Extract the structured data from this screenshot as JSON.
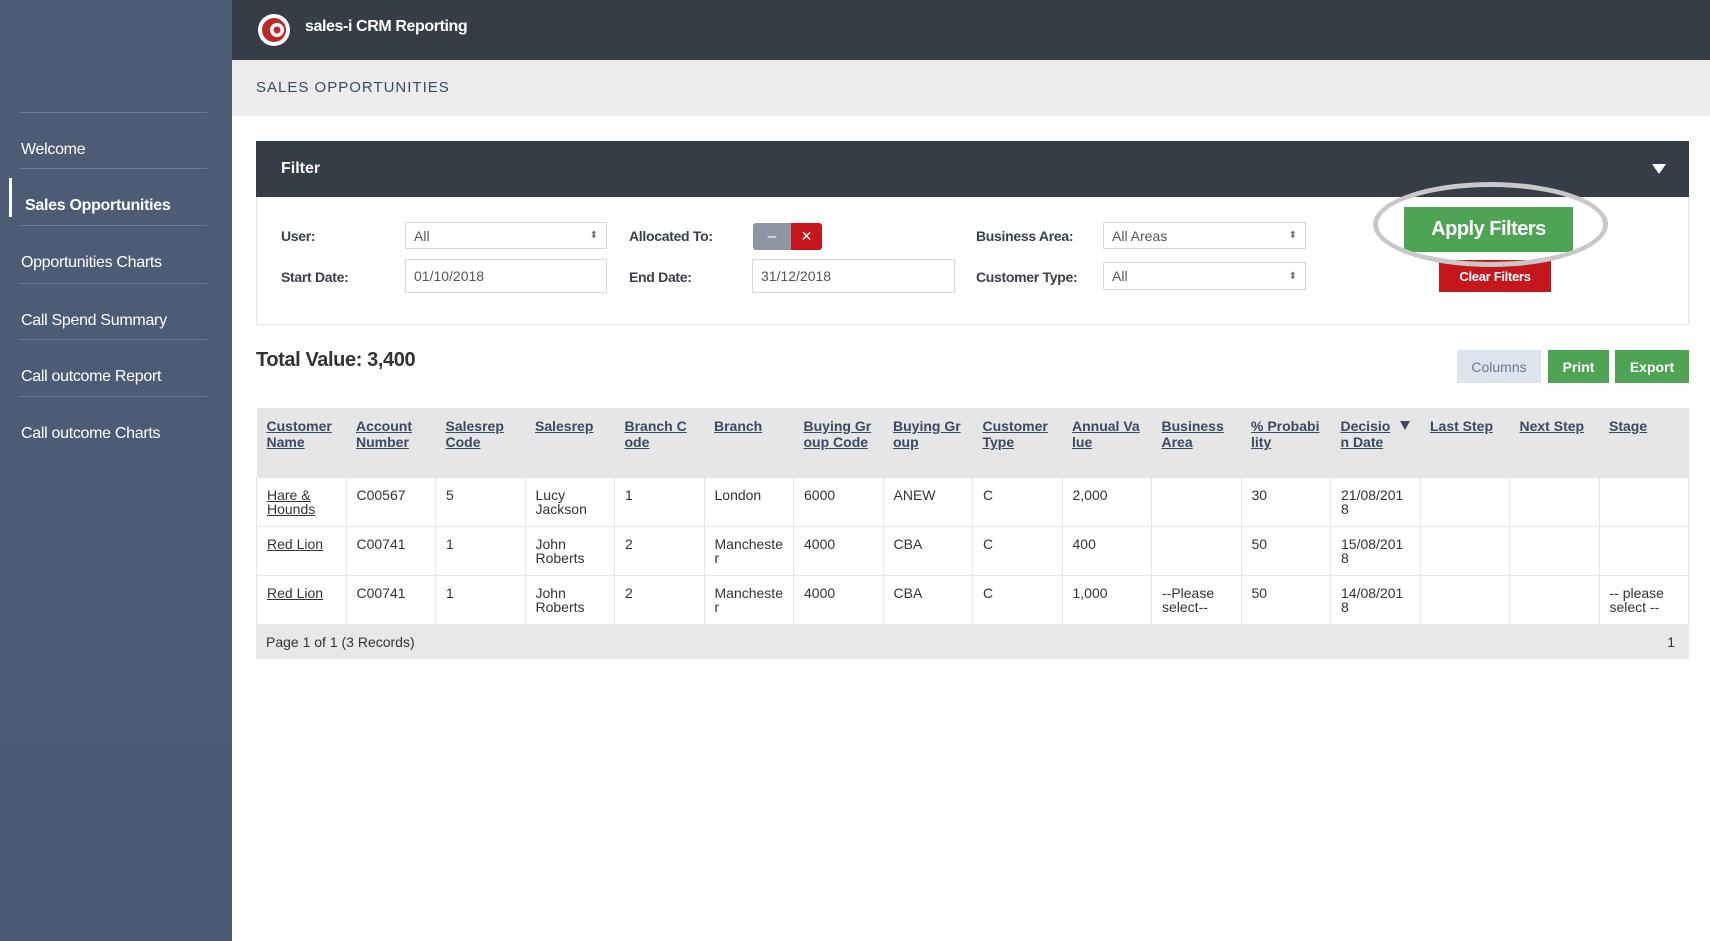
{
  "header": {
    "title": "sales-i CRM Reporting"
  },
  "sidebar": {
    "items": [
      "Welcome",
      "Sales Opportunities",
      "Opportunities Charts",
      "Call Spend Summary",
      "Call outcome Report",
      "Call outcome Charts"
    ]
  },
  "page": {
    "title": "SALES OPPORTUNITIES"
  },
  "filter": {
    "title": "Filter",
    "user": {
      "label": "User:",
      "value": "All"
    },
    "allocated": {
      "label": "Allocated To:"
    },
    "business_area": {
      "label": "Business Area:",
      "value": "All Areas"
    },
    "start_date": {
      "label": "Start Date:",
      "value": "01/10/2018"
    },
    "end_date": {
      "label": "End Date:",
      "value": "31/12/2018"
    },
    "customer_type": {
      "label": "Customer Type:",
      "value": "All"
    },
    "apply": "Apply Filters",
    "clear": "Clear Filters"
  },
  "summary": {
    "total": "Total Value: 3,400"
  },
  "toolbar": {
    "columns": "Columns",
    "print": "Print",
    "export": "Export"
  },
  "table": {
    "headers": [
      "Customer Name",
      "Account Number",
      "Salesrep Code",
      "Salesrep",
      "Branch Code",
      "Branch",
      "Buying Group Code",
      "Buying Group",
      "Customer Type",
      "Annual Value",
      "Business Area",
      "% Probability",
      "Decision Date",
      "Last Step",
      "Next Step",
      "Stage"
    ],
    "rows": [
      [
        "Hare & Hounds",
        "C00567",
        "5",
        "Lucy Jackson",
        "1",
        "London",
        "6000",
        "ANEW",
        "C",
        "2,000",
        "",
        "30",
        "21/08/2018",
        "",
        "",
        ""
      ],
      [
        "Red Lion",
        "C00741",
        "1",
        "John Roberts",
        "2",
        "Manchester",
        "4000",
        "CBA",
        "C",
        "400",
        "",
        "50",
        "15/08/2018",
        "",
        "",
        ""
      ],
      [
        "Red Lion",
        "C00741",
        "1",
        "John Roberts",
        "2",
        "Manchester",
        "4000",
        "CBA",
        "C",
        "1,000",
        "--Please select--",
        "50",
        "14/08/2018",
        "",
        "",
        "-- please select --"
      ]
    ],
    "footer": {
      "pages": "Page 1 of 1 (3 Records)",
      "page": "1"
    }
  }
}
